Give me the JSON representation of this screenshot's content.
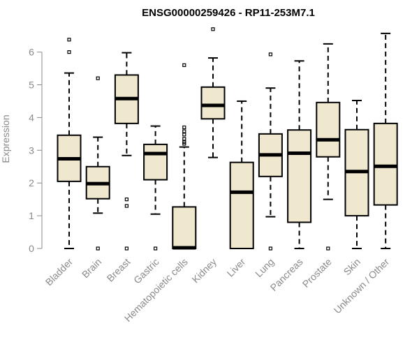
{
  "chart_data": {
    "type": "boxplot",
    "title": "ENSG00000259426 - RP11-253M7.1",
    "xlabel": "",
    "ylabel": "Expression",
    "ylim": [
      0,
      6.7
    ],
    "yticks": [
      0,
      1,
      2,
      3,
      4,
      5,
      6
    ],
    "categories": [
      "Bladder",
      "Brain",
      "Breast",
      "Gastric",
      "Hematopoietic cells",
      "Kidney",
      "Liver",
      "Lung",
      "Pancreas",
      "Prostate",
      "Skin",
      "Unknown / Other"
    ],
    "boxes": [
      {
        "name": "Bladder",
        "whisker_low": 0,
        "q1": 2.05,
        "median": 2.74,
        "q3": 3.46,
        "whisker_high": 5.36,
        "outliers": [
          6.0,
          6.38
        ]
      },
      {
        "name": "Brain",
        "whisker_low": 1.08,
        "q1": 1.52,
        "median": 1.98,
        "q3": 2.5,
        "whisker_high": 3.4,
        "outliers": [
          0,
          5.2
        ]
      },
      {
        "name": "Breast",
        "whisker_low": 2.84,
        "q1": 3.82,
        "median": 4.58,
        "q3": 5.3,
        "whisker_high": 5.98,
        "outliers": [
          1.3,
          1.5,
          0
        ]
      },
      {
        "name": "Gastric",
        "whisker_low": 1.05,
        "q1": 2.1,
        "median": 2.9,
        "q3": 3.18,
        "whisker_high": 3.74,
        "outliers": [
          0
        ]
      },
      {
        "name": "Hematopoietic cells",
        "whisker_low": 0,
        "q1": 0,
        "median": 0.02,
        "q3": 1.27,
        "whisker_high": 3.1,
        "outliers": [
          3.2,
          3.25,
          3.35,
          3.48,
          3.58,
          3.7,
          5.6
        ]
      },
      {
        "name": "Kidney",
        "whisker_low": 2.78,
        "q1": 3.96,
        "median": 4.37,
        "q3": 4.93,
        "whisker_high": 5.82,
        "outliers": [
          6.7
        ]
      },
      {
        "name": "Liver",
        "whisker_low": 0,
        "q1": 0,
        "median": 1.72,
        "q3": 2.63,
        "whisker_high": 4.5,
        "outliers": []
      },
      {
        "name": "Lung",
        "whisker_low": 0.97,
        "q1": 2.2,
        "median": 2.86,
        "q3": 3.5,
        "whisker_high": 4.9,
        "outliers": [
          0,
          5.93
        ]
      },
      {
        "name": "Pancreas",
        "whisker_low": 0,
        "q1": 0.8,
        "median": 2.91,
        "q3": 3.62,
        "whisker_high": 5.73,
        "outliers": []
      },
      {
        "name": "Prostate",
        "whisker_low": 1.5,
        "q1": 2.8,
        "median": 3.32,
        "q3": 4.46,
        "whisker_high": 6.25,
        "outliers": [
          0
        ]
      },
      {
        "name": "Skin",
        "whisker_low": 0,
        "q1": 1.0,
        "median": 2.35,
        "q3": 3.63,
        "whisker_high": 4.52,
        "outliers": []
      },
      {
        "name": "Unknown / Other",
        "whisker_low": 0,
        "q1": 1.33,
        "median": 2.51,
        "q3": 3.82,
        "whisker_high": 6.57,
        "outliers": []
      }
    ],
    "colors": {
      "box_fill": "#efe8cf",
      "line": "#000000",
      "axis_text": "#8a8a8a"
    }
  }
}
